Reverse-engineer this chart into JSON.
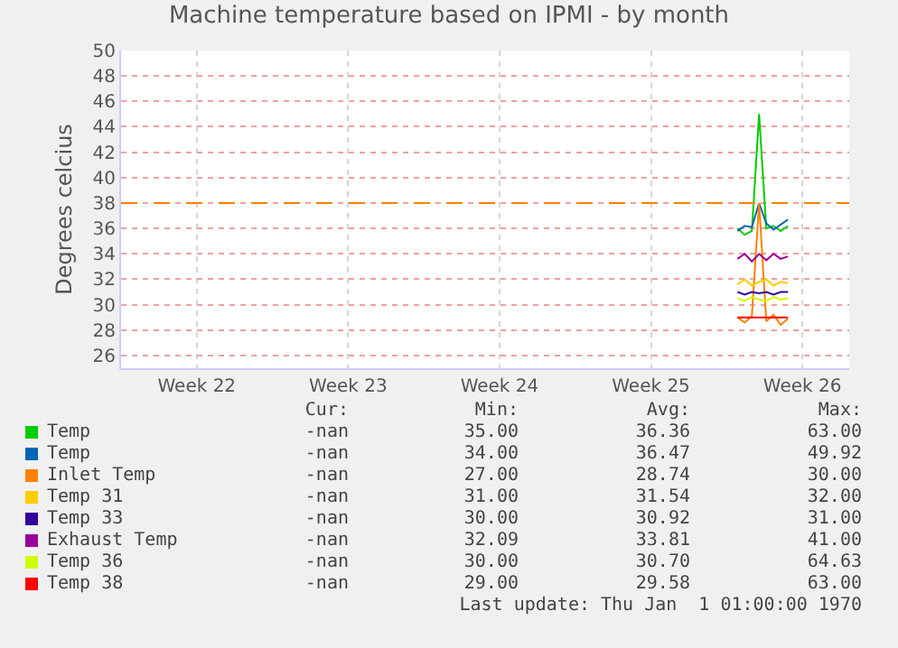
{
  "chart_data": {
    "type": "line",
    "title": "Machine temperature based on IPMI - by month",
    "ylabel": "Degrees celcius",
    "categories": [
      null,
      null,
      null,
      null,
      null,
      null,
      null,
      null,
      null,
      null,
      "Week 22",
      null,
      null,
      null,
      null,
      null,
      null,
      null,
      null,
      null,
      null,
      null,
      null,
      null,
      null,
      null,
      null,
      null,
      null,
      null,
      null,
      "Week 23",
      null,
      null,
      null,
      null,
      null,
      null,
      null,
      null,
      null,
      null,
      null,
      null,
      null,
      null,
      null,
      null,
      null,
      null,
      null,
      null,
      "Week 24",
      null,
      null,
      null,
      null,
      null,
      null,
      null,
      null,
      null,
      null,
      null,
      null,
      null,
      null,
      null,
      null,
      null,
      null,
      null,
      null,
      "Week 25",
      null,
      null,
      null,
      null,
      null,
      null,
      null,
      null,
      null,
      null,
      null,
      null,
      null,
      null,
      null,
      null,
      null,
      null,
      null,
      null,
      "Week 26",
      null,
      null,
      null,
      null,
      null,
      null
    ],
    "ylim": [
      25,
      50
    ],
    "yticks": [
      26,
      28,
      30,
      32,
      34,
      36,
      38,
      40,
      42,
      44,
      46,
      48,
      50
    ],
    "grid": true,
    "legend": "bottom",
    "marker": "none",
    "line_style": "solid",
    "series": [
      {
        "name": "Temp",
        "color": "#00cc00",
        "values": [
          null,
          null,
          null,
          null,
          null,
          null,
          null,
          null,
          null,
          null,
          null,
          null,
          null,
          null,
          null,
          null,
          null,
          null,
          null,
          null,
          null,
          null,
          null,
          null,
          null,
          null,
          null,
          null,
          null,
          null,
          null,
          null,
          null,
          null,
          null,
          null,
          null,
          null,
          null,
          null,
          null,
          null,
          null,
          null,
          null,
          null,
          null,
          null,
          null,
          null,
          null,
          null,
          null,
          null,
          null,
          null,
          null,
          null,
          null,
          null,
          null,
          null,
          null,
          null,
          null,
          null,
          null,
          null,
          null,
          null,
          null,
          null,
          null,
          null,
          null,
          null,
          null,
          null,
          null,
          null,
          null,
          null,
          null,
          null,
          null,
          36,
          35.5,
          35.8,
          45,
          36,
          36.2,
          35.8,
          36.2,
          null,
          null,
          null,
          null,
          null,
          null,
          null,
          null
        ]
      },
      {
        "name": "Temp",
        "color": "#0066b3",
        "values": [
          null,
          null,
          null,
          null,
          null,
          null,
          null,
          null,
          null,
          null,
          null,
          null,
          null,
          null,
          null,
          null,
          null,
          null,
          null,
          null,
          null,
          null,
          null,
          null,
          null,
          null,
          null,
          null,
          null,
          null,
          null,
          null,
          null,
          null,
          null,
          null,
          null,
          null,
          null,
          null,
          null,
          null,
          null,
          null,
          null,
          null,
          null,
          null,
          null,
          null,
          null,
          null,
          null,
          null,
          null,
          null,
          null,
          null,
          null,
          null,
          null,
          null,
          null,
          null,
          null,
          null,
          null,
          null,
          null,
          null,
          null,
          null,
          null,
          null,
          null,
          null,
          null,
          null,
          null,
          null,
          null,
          null,
          null,
          null,
          null,
          35.8,
          36.2,
          36.1,
          38,
          36.4,
          35.9,
          36.3,
          36.7,
          null,
          null,
          null,
          null,
          null,
          null,
          null,
          null
        ]
      },
      {
        "name": "Inlet Temp",
        "color": "#ff8000",
        "values": [
          null,
          null,
          null,
          null,
          null,
          null,
          null,
          null,
          null,
          null,
          null,
          null,
          null,
          null,
          null,
          null,
          null,
          null,
          null,
          null,
          null,
          null,
          null,
          null,
          null,
          null,
          null,
          null,
          null,
          null,
          null,
          null,
          null,
          null,
          null,
          null,
          null,
          null,
          null,
          null,
          null,
          null,
          null,
          null,
          null,
          null,
          null,
          null,
          null,
          null,
          null,
          null,
          null,
          null,
          null,
          null,
          null,
          null,
          null,
          null,
          null,
          null,
          null,
          null,
          null,
          null,
          null,
          null,
          null,
          null,
          null,
          null,
          null,
          null,
          null,
          null,
          null,
          null,
          null,
          null,
          null,
          null,
          null,
          null,
          null,
          29,
          28.6,
          29.1,
          38,
          28.7,
          29.2,
          28.4,
          28.9,
          null,
          null,
          null,
          null,
          null,
          null,
          null,
          null
        ]
      },
      {
        "name": "Temp 31",
        "color": "#ffcc00",
        "values": [
          null,
          null,
          null,
          null,
          null,
          null,
          null,
          null,
          null,
          null,
          null,
          null,
          null,
          null,
          null,
          null,
          null,
          null,
          null,
          null,
          null,
          null,
          null,
          null,
          null,
          null,
          null,
          null,
          null,
          null,
          null,
          null,
          null,
          null,
          null,
          null,
          null,
          null,
          null,
          null,
          null,
          null,
          null,
          null,
          null,
          null,
          null,
          null,
          null,
          null,
          null,
          null,
          null,
          null,
          null,
          null,
          null,
          null,
          null,
          null,
          null,
          null,
          null,
          null,
          null,
          null,
          null,
          null,
          null,
          null,
          null,
          null,
          null,
          null,
          null,
          null,
          null,
          null,
          null,
          null,
          null,
          null,
          null,
          null,
          null,
          31.6,
          32,
          31.5,
          31.8,
          32,
          31.5,
          31.8,
          31.7,
          null,
          null,
          null,
          null,
          null,
          null,
          null,
          null
        ]
      },
      {
        "name": "Temp 33",
        "color": "#330099",
        "values": [
          null,
          null,
          null,
          null,
          null,
          null,
          null,
          null,
          null,
          null,
          null,
          null,
          null,
          null,
          null,
          null,
          null,
          null,
          null,
          null,
          null,
          null,
          null,
          null,
          null,
          null,
          null,
          null,
          null,
          null,
          null,
          null,
          null,
          null,
          null,
          null,
          null,
          null,
          null,
          null,
          null,
          null,
          null,
          null,
          null,
          null,
          null,
          null,
          null,
          null,
          null,
          null,
          null,
          null,
          null,
          null,
          null,
          null,
          null,
          null,
          null,
          null,
          null,
          null,
          null,
          null,
          null,
          null,
          null,
          null,
          null,
          null,
          null,
          null,
          null,
          null,
          null,
          null,
          null,
          null,
          null,
          null,
          null,
          null,
          null,
          31,
          30.8,
          31,
          30.9,
          31,
          30.8,
          31,
          31,
          null,
          null,
          null,
          null,
          null,
          null,
          null,
          null
        ]
      },
      {
        "name": "Exhaust Temp",
        "color": "#990099",
        "values": [
          null,
          null,
          null,
          null,
          null,
          null,
          null,
          null,
          null,
          null,
          null,
          null,
          null,
          null,
          null,
          null,
          null,
          null,
          null,
          null,
          null,
          null,
          null,
          null,
          null,
          null,
          null,
          null,
          null,
          null,
          null,
          null,
          null,
          null,
          null,
          null,
          null,
          null,
          null,
          null,
          null,
          null,
          null,
          null,
          null,
          null,
          null,
          null,
          null,
          null,
          null,
          null,
          null,
          null,
          null,
          null,
          null,
          null,
          null,
          null,
          null,
          null,
          null,
          null,
          null,
          null,
          null,
          null,
          null,
          null,
          null,
          null,
          null,
          null,
          null,
          null,
          null,
          null,
          null,
          null,
          null,
          null,
          null,
          null,
          null,
          33.6,
          34,
          33.4,
          34,
          33.5,
          34,
          33.6,
          33.8,
          null,
          null,
          null,
          null,
          null,
          null,
          null,
          null
        ]
      },
      {
        "name": "Temp 36",
        "color": "#ccff00",
        "values": [
          null,
          null,
          null,
          null,
          null,
          null,
          null,
          null,
          null,
          null,
          null,
          null,
          null,
          null,
          null,
          null,
          null,
          null,
          null,
          null,
          null,
          null,
          null,
          null,
          null,
          null,
          null,
          null,
          null,
          null,
          null,
          null,
          null,
          null,
          null,
          null,
          null,
          null,
          null,
          null,
          null,
          null,
          null,
          null,
          null,
          null,
          null,
          null,
          null,
          null,
          null,
          null,
          null,
          null,
          null,
          null,
          null,
          null,
          null,
          null,
          null,
          null,
          null,
          null,
          null,
          null,
          null,
          null,
          null,
          null,
          null,
          null,
          null,
          null,
          null,
          null,
          null,
          null,
          null,
          null,
          null,
          null,
          null,
          null,
          null,
          30.5,
          30.3,
          30.6,
          30.4,
          30.3,
          30.6,
          30.4,
          30.5,
          null,
          null,
          null,
          null,
          null,
          null,
          null,
          null
        ]
      },
      {
        "name": "Temp 38",
        "color": "#ff0000",
        "values": [
          null,
          null,
          null,
          null,
          null,
          null,
          null,
          null,
          null,
          null,
          null,
          null,
          null,
          null,
          null,
          null,
          null,
          null,
          null,
          null,
          null,
          null,
          null,
          null,
          null,
          null,
          null,
          null,
          null,
          null,
          null,
          null,
          null,
          null,
          null,
          null,
          null,
          null,
          null,
          null,
          null,
          null,
          null,
          null,
          null,
          null,
          null,
          null,
          null,
          null,
          null,
          null,
          null,
          null,
          null,
          null,
          null,
          null,
          null,
          null,
          null,
          null,
          null,
          null,
          null,
          null,
          null,
          null,
          null,
          null,
          null,
          null,
          null,
          null,
          null,
          null,
          null,
          null,
          null,
          null,
          null,
          null,
          null,
          null,
          null,
          29,
          29,
          29,
          29,
          29,
          29,
          29,
          29,
          null,
          null,
          null,
          null,
          null,
          null,
          null,
          null
        ]
      }
    ],
    "ref_lines": [
      {
        "axis": "y",
        "value": 38,
        "color": "#ff8000",
        "line_style": "dashed"
      }
    ],
    "annotations": [
      "Cur:",
      "Min:",
      "Avg:",
      "Max:",
      "-nan",
      "35.00",
      "36.36",
      "63.00",
      "-nan",
      "34.00",
      "36.47",
      "49.92",
      "-nan",
      "27.00",
      "28.74",
      "30.00",
      "-nan",
      "31.00",
      "31.54",
      "32.00",
      "-nan",
      "30.00",
      "30.92",
      "31.00",
      "-nan",
      "32.09",
      "33.81",
      "41.00",
      "-nan",
      "30.00",
      "30.70",
      "64.63",
      "-nan",
      "29.00",
      "29.58",
      "63.00",
      "Last update: Thu Jan  1 01:00:00 1970"
    ]
  }
}
